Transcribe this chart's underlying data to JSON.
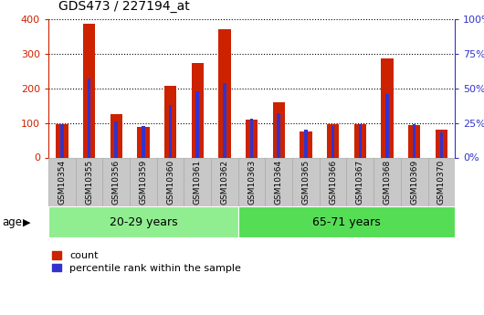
{
  "title": "GDS473 / 227194_at",
  "samples": [
    "GSM10354",
    "GSM10355",
    "GSM10356",
    "GSM10359",
    "GSM10360",
    "GSM10361",
    "GSM10362",
    "GSM10363",
    "GSM10364",
    "GSM10365",
    "GSM10366",
    "GSM10367",
    "GSM10368",
    "GSM10369",
    "GSM10370"
  ],
  "counts": [
    95,
    385,
    125,
    88,
    207,
    272,
    370,
    110,
    160,
    75,
    97,
    95,
    285,
    93,
    80
  ],
  "percentiles": [
    24,
    57,
    26,
    23,
    38,
    48,
    54,
    28,
    32,
    20,
    23,
    24,
    46,
    24,
    18
  ],
  "group1_label": "20-29 years",
  "group2_label": "65-71 years",
  "group1_count": 7,
  "age_label": "age",
  "count_color": "#CC2200",
  "percentile_color": "#3333CC",
  "ylim_left": [
    0,
    400
  ],
  "ylim_right": [
    0,
    100
  ],
  "yticks_left": [
    0,
    100,
    200,
    300,
    400
  ],
  "ytick_labels_right": [
    "0%",
    "25%",
    "50%",
    "75%",
    "100%"
  ],
  "group1_bg": "#90EE90",
  "group2_bg": "#55DD55",
  "label_bg_color": "#C8C8C8",
  "label_border_color": "#AAAAAA",
  "title_fontsize": 10
}
